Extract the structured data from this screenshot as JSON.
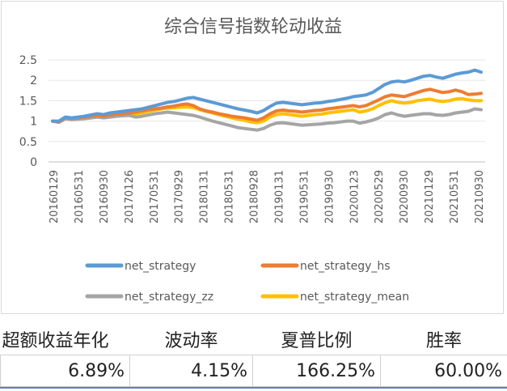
{
  "chart_data": {
    "type": "line",
    "title": "综合信号指数轮动收益",
    "ylim": [
      0,
      2.5
    ],
    "yticks": [
      "0",
      "0.5",
      "1",
      "1.5",
      "2",
      "2.5"
    ],
    "xtick_labels": [
      "20160129",
      "20160531",
      "20160930",
      "20170126",
      "20170531",
      "20170929",
      "20180131",
      "20180531",
      "20180928",
      "20190131",
      "20190531",
      "20190930",
      "20200123",
      "20200529",
      "20200930",
      "20210129",
      "20210531",
      "20210930"
    ],
    "grid": "horizontal",
    "legend": "bottom",
    "series": [
      {
        "name": "net_strategy",
        "color": "#5b9bd5",
        "values": [
          1.0,
          1.0,
          1.1,
          1.08,
          1.1,
          1.12,
          1.15,
          1.18,
          1.16,
          1.2,
          1.22,
          1.24,
          1.26,
          1.28,
          1.3,
          1.34,
          1.38,
          1.42,
          1.46,
          1.48,
          1.52,
          1.56,
          1.58,
          1.54,
          1.5,
          1.46,
          1.42,
          1.38,
          1.34,
          1.3,
          1.27,
          1.24,
          1.2,
          1.26,
          1.36,
          1.44,
          1.46,
          1.44,
          1.42,
          1.4,
          1.42,
          1.44,
          1.45,
          1.48,
          1.5,
          1.53,
          1.56,
          1.6,
          1.62,
          1.64,
          1.7,
          1.8,
          1.9,
          1.96,
          1.98,
          1.96,
          2.0,
          2.05,
          2.1,
          2.12,
          2.08,
          2.05,
          2.1,
          2.15,
          2.18,
          2.2,
          2.25,
          2.2
        ]
      },
      {
        "name": "net_strategy_hs",
        "color": "#ed7d31",
        "values": [
          1.0,
          0.98,
          1.08,
          1.06,
          1.08,
          1.1,
          1.12,
          1.14,
          1.12,
          1.15,
          1.17,
          1.18,
          1.2,
          1.22,
          1.25,
          1.28,
          1.3,
          1.32,
          1.35,
          1.37,
          1.4,
          1.42,
          1.38,
          1.3,
          1.25,
          1.22,
          1.18,
          1.15,
          1.12,
          1.1,
          1.08,
          1.05,
          1.02,
          1.08,
          1.18,
          1.25,
          1.27,
          1.25,
          1.24,
          1.22,
          1.24,
          1.26,
          1.27,
          1.3,
          1.32,
          1.34,
          1.36,
          1.38,
          1.35,
          1.38,
          1.45,
          1.52,
          1.6,
          1.64,
          1.62,
          1.6,
          1.65,
          1.7,
          1.75,
          1.78,
          1.74,
          1.7,
          1.72,
          1.76,
          1.72,
          1.65,
          1.66,
          1.68
        ]
      },
      {
        "name": "net_strategy_zz",
        "color": "#a5a5a5",
        "values": [
          1.0,
          0.97,
          1.06,
          1.04,
          1.05,
          1.06,
          1.08,
          1.1,
          1.08,
          1.1,
          1.12,
          1.13,
          1.14,
          1.1,
          1.12,
          1.15,
          1.18,
          1.2,
          1.22,
          1.2,
          1.18,
          1.16,
          1.14,
          1.1,
          1.05,
          1.0,
          0.96,
          0.92,
          0.88,
          0.84,
          0.82,
          0.8,
          0.78,
          0.82,
          0.9,
          0.95,
          0.96,
          0.94,
          0.92,
          0.9,
          0.91,
          0.92,
          0.93,
          0.95,
          0.96,
          0.98,
          1.0,
          1.0,
          0.95,
          0.98,
          1.02,
          1.08,
          1.16,
          1.2,
          1.15,
          1.12,
          1.14,
          1.16,
          1.18,
          1.18,
          1.15,
          1.14,
          1.16,
          1.2,
          1.22,
          1.24,
          1.3,
          1.28
        ]
      },
      {
        "name": "net_strategy_mean",
        "color": "#ffc000",
        "values": [
          1.0,
          0.98,
          1.08,
          1.06,
          1.08,
          1.09,
          1.11,
          1.13,
          1.11,
          1.14,
          1.16,
          1.17,
          1.18,
          1.18,
          1.2,
          1.24,
          1.27,
          1.3,
          1.32,
          1.33,
          1.34,
          1.35,
          1.33,
          1.28,
          1.24,
          1.2,
          1.16,
          1.12,
          1.08,
          1.05,
          1.02,
          0.98,
          0.96,
          1.0,
          1.1,
          1.16,
          1.18,
          1.16,
          1.14,
          1.12,
          1.14,
          1.16,
          1.17,
          1.2,
          1.22,
          1.24,
          1.26,
          1.28,
          1.22,
          1.25,
          1.3,
          1.38,
          1.45,
          1.5,
          1.46,
          1.44,
          1.46,
          1.5,
          1.52,
          1.54,
          1.5,
          1.48,
          1.5,
          1.54,
          1.55,
          1.52,
          1.5,
          1.5
        ]
      }
    ]
  },
  "stats": {
    "headers": [
      "超额收益年化",
      "波动率",
      "夏普比例",
      "胜率"
    ],
    "values": [
      "6.89%",
      "4.15%",
      "166.25%",
      "60.00%"
    ]
  }
}
